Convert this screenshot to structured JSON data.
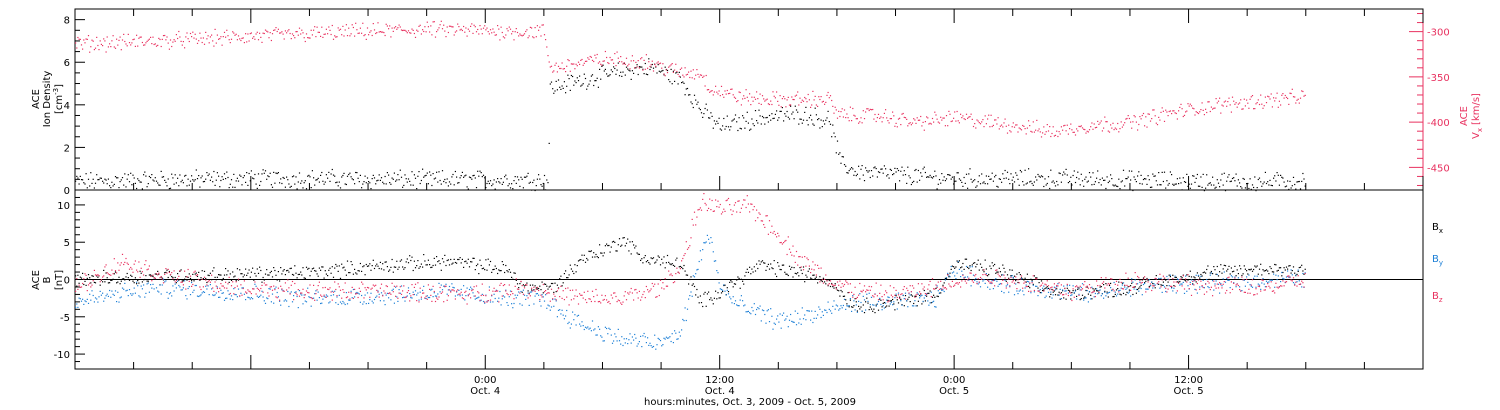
{
  "footer": {
    "xlabel": "hours:minutes, Oct.  3, 2009 - Oct.  5, 2009"
  },
  "colors": {
    "black": "#000000",
    "pink": "#e8315f",
    "blue": "#1c7fd6"
  },
  "chart_data": [
    {
      "type": "scatter",
      "panel": "top",
      "left_axis": {
        "label_lines": [
          "ACE",
          "Ion Density"
        ],
        "unit_base": "[cm",
        "unit_sup": "-3",
        "unit_close": "]",
        "ylim": [
          0,
          8.5
        ],
        "ticks": [
          "0",
          "2",
          "4",
          "6",
          "8"
        ]
      },
      "right_axis": {
        "label_title": "ACE",
        "label_var": "V",
        "label_sub": "x",
        "label_unit": "[km/s]",
        "ylim": [
          -475,
          -275
        ],
        "ticks": [
          "-300",
          "-350",
          "-400",
          "-450"
        ],
        "color": "#e8315f"
      },
      "xlim_hours": [
        -21,
        48
      ],
      "x_tick_labels": [
        {
          "hour": 0,
          "time": "0:00",
          "date": "Oct. 4"
        },
        {
          "hour": 12,
          "time": "12:00",
          "date": "Oct. 4"
        },
        {
          "hour": 24,
          "time": "0:00",
          "date": "Oct. 5"
        },
        {
          "hour": 36,
          "time": "12:00",
          "date": "Oct. 5"
        }
      ],
      "series": [
        {
          "axis": "left",
          "color": "#000000",
          "knots": [
            [
              -21,
              0.4
            ],
            [
              -17,
              0.5
            ],
            [
              -10,
              0.55
            ],
            [
              -3,
              0.5
            ],
            [
              3.2,
              0.5
            ],
            [
              3.3,
              4.8
            ],
            [
              5,
              5.2
            ],
            [
              7,
              5.6
            ],
            [
              8.5,
              5.8
            ],
            [
              10,
              5.2
            ],
            [
              11,
              3.8
            ],
            [
              12,
              3.0
            ],
            [
              14,
              3.4
            ],
            [
              16,
              3.6
            ],
            [
              17.6,
              3.3
            ],
            [
              18.2,
              1.2
            ],
            [
              19,
              0.9
            ],
            [
              21,
              0.75
            ],
            [
              23,
              0.6
            ],
            [
              25,
              0.55
            ],
            [
              30,
              0.55
            ],
            [
              35,
              0.45
            ],
            [
              40,
              0.4
            ],
            [
              42,
              0.45
            ]
          ],
          "noise": 0.35
        },
        {
          "axis": "right",
          "color": "#e8315f",
          "knots": [
            [
              -21,
              -313
            ],
            [
              -17,
              -310
            ],
            [
              -12,
              -305
            ],
            [
              -7,
              -300
            ],
            [
              -3,
              -297
            ],
            [
              3,
              -300
            ],
            [
              3.3,
              -340
            ],
            [
              6,
              -330
            ],
            [
              8,
              -332
            ],
            [
              10,
              -345
            ],
            [
              11,
              -345
            ],
            [
              11.5,
              -362
            ],
            [
              13,
              -372
            ],
            [
              15,
              -375
            ],
            [
              17.6,
              -374
            ],
            [
              18,
              -392
            ],
            [
              20,
              -392
            ],
            [
              22,
              -400
            ],
            [
              24,
              -395
            ],
            [
              27,
              -403
            ],
            [
              29,
              -410
            ],
            [
              31,
              -403
            ],
            [
              33,
              -400
            ],
            [
              35,
              -390
            ],
            [
              37,
              -382
            ],
            [
              40,
              -375
            ],
            [
              42,
              -372
            ]
          ],
          "noise": 7
        }
      ]
    },
    {
      "type": "scatter",
      "panel": "bottom",
      "left_axis": {
        "label_lines": [
          "ACE",
          "B",
          "[nT]"
        ],
        "ylim": [
          -12,
          12
        ],
        "ticks": [
          "10",
          "5",
          "0",
          "-5",
          "-10"
        ]
      },
      "zero_line": true,
      "xlim_hours": [
        -21,
        48
      ],
      "series": [
        {
          "name_base": "B",
          "name_sub": "x",
          "color": "#000000",
          "knots": [
            [
              -21,
              0
            ],
            [
              -17,
              0.5
            ],
            [
              -13,
              0.7
            ],
            [
              -9,
              1.0
            ],
            [
              -5,
              2.0
            ],
            [
              -2,
              2.5
            ],
            [
              1,
              1.5
            ],
            [
              2,
              -1.0
            ],
            [
              3.5,
              -1.0
            ],
            [
              5,
              3.0
            ],
            [
              6.5,
              4.5
            ],
            [
              7,
              5.5
            ],
            [
              8,
              3.0
            ],
            [
              10,
              2.0
            ],
            [
              11,
              -3.0
            ],
            [
              13,
              0
            ],
            [
              14,
              2.0
            ],
            [
              16,
              1.0
            ],
            [
              17.5,
              0
            ],
            [
              19,
              -3.5
            ],
            [
              21,
              -3.0
            ],
            [
              23,
              -2.0
            ],
            [
              24,
              2.0
            ],
            [
              26,
              1.5
            ],
            [
              28,
              -0.5
            ],
            [
              29.5,
              -2.0
            ],
            [
              31,
              -1.5
            ],
            [
              33,
              -1.0
            ],
            [
              35,
              0
            ],
            [
              37,
              1.0
            ],
            [
              40,
              1.5
            ],
            [
              42,
              1.5
            ]
          ],
          "noise": 0.8
        },
        {
          "name_base": "B",
          "name_sub": "y",
          "color": "#1c7fd6",
          "knots": [
            [
              -21,
              -3.0
            ],
            [
              -17,
              -1.0
            ],
            [
              -13,
              -1.5
            ],
            [
              -9,
              -2.5
            ],
            [
              -5,
              -2.0
            ],
            [
              -2,
              -1.5
            ],
            [
              1,
              -2.5
            ],
            [
              3,
              -2.5
            ],
            [
              4,
              -4.5
            ],
            [
              5,
              -6.0
            ],
            [
              7,
              -8.0
            ],
            [
              9,
              -8.5
            ],
            [
              10,
              -7.0
            ],
            [
              11,
              3.5
            ],
            [
              11.5,
              6.0
            ],
            [
              12,
              -1.0
            ],
            [
              13,
              -3.5
            ],
            [
              15,
              -5.5
            ],
            [
              17,
              -4.5
            ],
            [
              19,
              -3.0
            ],
            [
              21,
              -3.0
            ],
            [
              23,
              -2.5
            ],
            [
              24,
              1.5
            ],
            [
              26,
              -0.5
            ],
            [
              28,
              -1.0
            ],
            [
              29.5,
              -1.5
            ],
            [
              31,
              -2.0
            ],
            [
              33,
              -1.0
            ],
            [
              35,
              -0.5
            ],
            [
              37,
              -0.5
            ],
            [
              40,
              0
            ],
            [
              42,
              0.3
            ]
          ],
          "noise": 1.0
        },
        {
          "name_base": "B",
          "name_sub": "z",
          "color": "#e8315f",
          "knots": [
            [
              -21,
              -1.0
            ],
            [
              -18.5,
              2.5
            ],
            [
              -17,
              1.0
            ],
            [
              -13,
              -1.0
            ],
            [
              -9,
              -1.5
            ],
            [
              -5,
              -1.5
            ],
            [
              -1,
              -2.0
            ],
            [
              2,
              -1.0
            ],
            [
              5,
              -2.5
            ],
            [
              7,
              -2.5
            ],
            [
              9,
              -1.0
            ],
            [
              10,
              2.0
            ],
            [
              11,
              10.5
            ],
            [
              12,
              9.5
            ],
            [
              13.5,
              10.0
            ],
            [
              15,
              6.0
            ],
            [
              16,
              3.0
            ],
            [
              17.5,
              0
            ],
            [
              19,
              -1.5
            ],
            [
              21,
              -2.0
            ],
            [
              23,
              -1.0
            ],
            [
              24,
              0
            ],
            [
              26,
              0.5
            ],
            [
              28,
              -0.5
            ],
            [
              30,
              -1.5
            ],
            [
              33,
              0
            ],
            [
              35,
              -0.5
            ],
            [
              37,
              -0.8
            ],
            [
              40,
              -1.0
            ],
            [
              42,
              0
            ]
          ],
          "noise": 1.0
        }
      ]
    }
  ]
}
